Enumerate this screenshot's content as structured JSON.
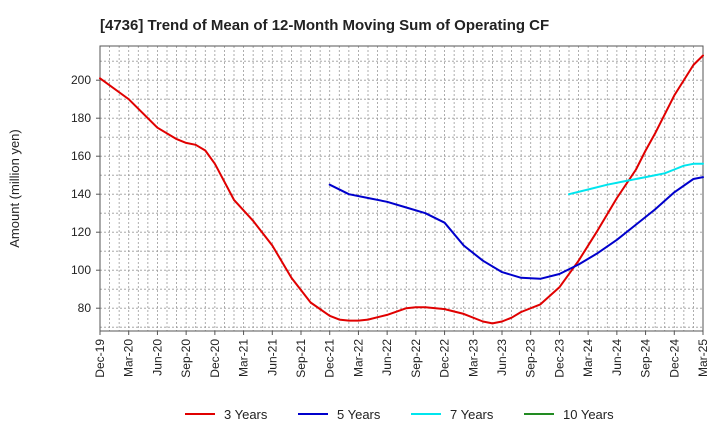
{
  "chart_data": {
    "type": "line",
    "title": "[4736]  Trend of Mean of 12-Month Moving Sum of Operating CF",
    "xlabel": "",
    "ylabel": "Amount (million yen)",
    "ylim": [
      68,
      218
    ],
    "yticks": [
      80,
      100,
      120,
      140,
      160,
      180,
      200
    ],
    "x_tick_labels": [
      "Dec-19",
      "Mar-20",
      "Jun-20",
      "Sep-20",
      "Dec-20",
      "Mar-21",
      "Jun-21",
      "Sep-21",
      "Dec-21",
      "Mar-22",
      "Jun-22",
      "Sep-22",
      "Dec-22",
      "Mar-23",
      "Jun-23",
      "Sep-23",
      "Dec-23",
      "Mar-24",
      "Jun-24",
      "Sep-24",
      "Dec-24",
      "Mar-25"
    ],
    "x_start": "Dec-19",
    "x_units": "months since Dec-19",
    "xlim": [
      0,
      63
    ],
    "grid": true,
    "legend_position": "bottom",
    "series": [
      {
        "name": "3 Years",
        "color": "#e00000",
        "x": [
          0,
          3,
          6,
          8,
          9,
          10,
          11,
          12,
          14,
          16,
          18,
          20,
          22,
          24,
          25,
          26,
          27,
          28,
          30,
          32,
          33,
          34,
          36,
          38,
          40,
          41,
          42,
          43,
          44,
          46,
          48,
          50,
          52,
          54,
          56,
          57,
          58,
          60,
          62,
          63
        ],
        "y": [
          201,
          190,
          175,
          169,
          167,
          166,
          163,
          156,
          137,
          126,
          113,
          96,
          83,
          76,
          74,
          73.5,
          73.5,
          74,
          76.5,
          80,
          80.5,
          80.5,
          79.5,
          77,
          73,
          72,
          73,
          75,
          78,
          82,
          91,
          105,
          121,
          138,
          153,
          163,
          172,
          192,
          208,
          213
        ]
      },
      {
        "name": "5 Years",
        "color": "#0000cc",
        "x": [
          24,
          26,
          28,
          30,
          32,
          34,
          36,
          38,
          40,
          42,
          44,
          46,
          48,
          50,
          52,
          54,
          56,
          58,
          60,
          62,
          63
        ],
        "y": [
          145,
          140,
          138,
          136,
          133,
          130,
          125,
          113,
          105,
          99,
          96,
          95.5,
          98,
          103,
          109,
          116,
          124,
          132,
          141,
          148,
          149
        ]
      },
      {
        "name": "7 Years",
        "color": "#00e5ee",
        "x": [
          49,
          51,
          53,
          55,
          57,
          59,
          60,
          61,
          62,
          63
        ],
        "y": [
          140,
          142.5,
          145,
          147,
          149,
          151,
          153,
          155,
          156,
          156
        ]
      },
      {
        "name": "10 Years",
        "color": "#228b22",
        "x": [],
        "y": []
      }
    ]
  }
}
